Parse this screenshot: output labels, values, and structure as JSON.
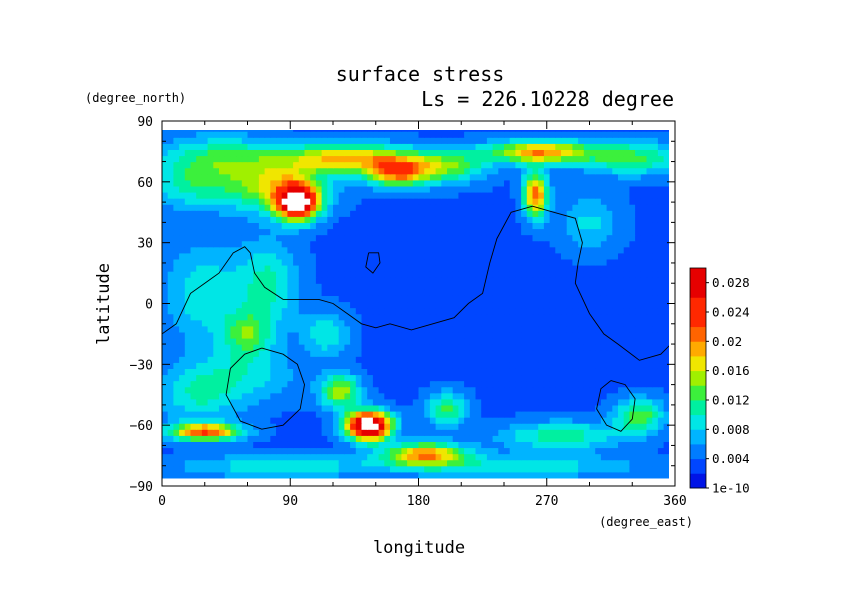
{
  "chart_data": {
    "type": "heatmap",
    "title": "surface stress",
    "subtitle": "Ls = 226.10228 degree",
    "xlabel": "longitude",
    "ylabel": "latitude",
    "x_unit": "(degree_east)",
    "y_unit": "(degree_north)",
    "xlim": [
      0,
      360
    ],
    "ylim": [
      -90,
      90
    ],
    "x_ticks": [
      "0",
      "90",
      "180",
      "270",
      "360"
    ],
    "y_ticks": [
      "90",
      "60",
      "30",
      "0",
      "−30",
      "−60",
      "−90"
    ],
    "data_lat_range": [
      -86,
      86
    ],
    "colorbar": {
      "min": 0,
      "max": 0.03,
      "tick_labels": [
        "1e-10",
        "0.004",
        "0.008",
        "0.012",
        "0.016",
        "0.02",
        "0.024",
        "0.028"
      ],
      "tick_values": [
        0,
        0.004,
        0.008,
        0.012,
        0.016,
        0.02,
        0.024,
        0.028
      ],
      "colors": [
        "#0014e6",
        "#0046ff",
        "#007cff",
        "#00b4ff",
        "#00e6e6",
        "#00f0a0",
        "#3cf03c",
        "#a0f000",
        "#f0e600",
        "#ffaa00",
        "#ff6400",
        "#ff2800",
        "#e60000",
        "#ffffff"
      ],
      "levels": [
        0,
        0.002,
        0.004,
        0.006,
        0.008,
        0.01,
        0.012,
        0.014,
        0.016,
        0.018,
        0.02,
        0.022,
        0.026,
        0.03
      ]
    },
    "background_value": 0.0035,
    "features": [
      {
        "lon": 95,
        "lat": 50,
        "value": 0.028,
        "sigma_lon": 10,
        "sigma_lat": 6
      },
      {
        "lon": 80,
        "lat": 58,
        "value": 0.012,
        "sigma_lon": 25,
        "sigma_lat": 9
      },
      {
        "lon": 130,
        "lat": 72,
        "value": 0.015,
        "sigma_lon": 30,
        "sigma_lat": 5
      },
      {
        "lon": 165,
        "lat": 65,
        "value": 0.016,
        "sigma_lon": 15,
        "sigma_lat": 5
      },
      {
        "lon": 200,
        "lat": 68,
        "value": 0.01,
        "sigma_lon": 20,
        "sigma_lat": 6
      },
      {
        "lon": 265,
        "lat": 75,
        "value": 0.016,
        "sigma_lon": 25,
        "sigma_lat": 4
      },
      {
        "lon": 330,
        "lat": 72,
        "value": 0.009,
        "sigma_lon": 25,
        "sigma_lat": 6
      },
      {
        "lon": 40,
        "lat": 72,
        "value": 0.008,
        "sigma_lon": 30,
        "sigma_lat": 8
      },
      {
        "lon": 262,
        "lat": 54,
        "value": 0.018,
        "sigma_lon": 6,
        "sigma_lat": 8
      },
      {
        "lon": 20,
        "lat": 58,
        "value": 0.006,
        "sigma_lon": 20,
        "sigma_lat": 8
      },
      {
        "lon": 30,
        "lat": 5,
        "value": 0.006,
        "sigma_lon": 20,
        "sigma_lat": 18
      },
      {
        "lon": 75,
        "lat": 10,
        "value": 0.007,
        "sigma_lon": 15,
        "sigma_lat": 15
      },
      {
        "lon": 60,
        "lat": -15,
        "value": 0.008,
        "sigma_lon": 12,
        "sigma_lat": 8
      },
      {
        "lon": 115,
        "lat": -15,
        "value": 0.006,
        "sigma_lon": 12,
        "sigma_lat": 8
      },
      {
        "lon": 25,
        "lat": -45,
        "value": 0.006,
        "sigma_lon": 20,
        "sigma_lat": 10
      },
      {
        "lon": 145,
        "lat": -60,
        "value": 0.032,
        "sigma_lon": 11,
        "sigma_lat": 5
      },
      {
        "lon": 125,
        "lat": -43,
        "value": 0.012,
        "sigma_lon": 10,
        "sigma_lat": 6
      },
      {
        "lon": 30,
        "lat": -63,
        "value": 0.018,
        "sigma_lon": 18,
        "sigma_lat": 3
      },
      {
        "lon": 185,
        "lat": -74,
        "value": 0.016,
        "sigma_lon": 20,
        "sigma_lat": 4
      },
      {
        "lon": 280,
        "lat": -65,
        "value": 0.008,
        "sigma_lon": 30,
        "sigma_lat": 5
      },
      {
        "lon": 335,
        "lat": -55,
        "value": 0.01,
        "sigma_lon": 12,
        "sigma_lat": 6
      },
      {
        "lon": 200,
        "lat": -52,
        "value": 0.009,
        "sigma_lon": 10,
        "sigma_lat": 6
      },
      {
        "lon": 80,
        "lat": -80,
        "value": 0.006,
        "sigma_lon": 50,
        "sigma_lat": 4
      },
      {
        "lon": 250,
        "lat": -80,
        "value": 0.006,
        "sigma_lon": 60,
        "sigma_lat": 4
      },
      {
        "lon": 60,
        "lat": -35,
        "value": 0.005,
        "sigma_lon": 25,
        "sigma_lat": 10
      },
      {
        "lon": 300,
        "lat": 40,
        "value": 0.005,
        "sigma_lon": 15,
        "sigma_lat": 10
      }
    ],
    "overlay_contours": [
      [
        [
          0,
          -15
        ],
        [
          10,
          -10
        ],
        [
          20,
          5
        ],
        [
          30,
          10
        ],
        [
          40,
          15
        ],
        [
          50,
          25
        ],
        [
          58,
          28
        ],
        [
          62,
          25
        ],
        [
          65,
          15
        ],
        [
          72,
          8
        ],
        [
          85,
          2
        ],
        [
          110,
          2
        ],
        [
          120,
          0
        ],
        [
          130,
          -5
        ],
        [
          140,
          -10
        ],
        [
          150,
          -12
        ],
        [
          160,
          -10
        ],
        [
          175,
          -13
        ],
        [
          190,
          -10
        ],
        [
          205,
          -7
        ],
        [
          215,
          0
        ],
        [
          225,
          5
        ],
        [
          230,
          20
        ],
        [
          235,
          32
        ],
        [
          245,
          45
        ],
        [
          260,
          48
        ],
        [
          275,
          45
        ],
        [
          290,
          42
        ],
        [
          295,
          30
        ],
        [
          292,
          20
        ],
        [
          290,
          10
        ],
        [
          300,
          -5
        ],
        [
          310,
          -15
        ],
        [
          320,
          -20
        ],
        [
          335,
          -28
        ],
        [
          350,
          -25
        ],
        [
          360,
          -18
        ]
      ],
      [
        [
          70,
          -22
        ],
        [
          85,
          -25
        ],
        [
          95,
          -30
        ],
        [
          100,
          -40
        ],
        [
          97,
          -52
        ],
        [
          85,
          -60
        ],
        [
          70,
          -62
        ],
        [
          55,
          -58
        ],
        [
          45,
          -45
        ],
        [
          48,
          -32
        ],
        [
          58,
          -25
        ],
        [
          70,
          -22
        ]
      ],
      [
        [
          145,
          25
        ],
        [
          152,
          25
        ],
        [
          153,
          20
        ],
        [
          148,
          15
        ],
        [
          143,
          18
        ],
        [
          145,
          25
        ]
      ],
      [
        [
          315,
          -38
        ],
        [
          325,
          -40
        ],
        [
          332,
          -47
        ],
        [
          330,
          -57
        ],
        [
          322,
          -63
        ],
        [
          312,
          -60
        ],
        [
          305,
          -52
        ],
        [
          308,
          -42
        ],
        [
          315,
          -38
        ]
      ]
    ]
  }
}
